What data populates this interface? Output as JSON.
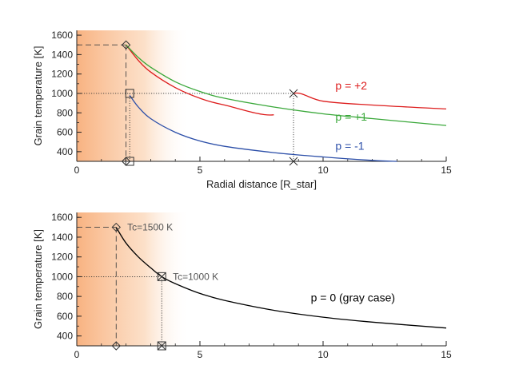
{
  "chart_data": [
    {
      "type": "line",
      "xlabel": "Radial distance [R_star]",
      "ylabel": "Grain temperature [K]",
      "xlim": [
        0,
        15
      ],
      "ylim": [
        300,
        1650
      ],
      "xticks": [
        0,
        5,
        10,
        15
      ],
      "yticks": [
        400,
        600,
        800,
        1000,
        1200,
        1400,
        1600
      ],
      "shaded_region": {
        "x_start": 0,
        "x_end": 4.6
      },
      "series": [
        {
          "name": "p = +2",
          "color": "#dd1c1c",
          "x_start": 2.0,
          "x_end": 15,
          "points": [
            [
              2.0,
              1500
            ],
            [
              2.5,
              1340
            ],
            [
              3,
              1220
            ],
            [
              4,
              1060
            ],
            [
              5,
              950
            ],
            [
              6,
              880
            ],
            [
              8,
              780
            ],
            [
              8.8,
              1000
            ],
            [
              10,
              920
            ],
            [
              12,
              880
            ],
            [
              15,
              840
            ]
          ],
          "label_x": 10.5,
          "label_y": 1040
        },
        {
          "name": "p = +1",
          "color": "#3aa83a",
          "x_start": 2.0,
          "x_end": 15,
          "points": [
            [
              2.0,
              1500
            ],
            [
              2.5,
              1370
            ],
            [
              3,
              1270
            ],
            [
              4,
              1120
            ],
            [
              5,
              1020
            ],
            [
              6,
              950
            ],
            [
              8,
              860
            ],
            [
              10,
              790
            ],
            [
              12,
              740
            ],
            [
              15,
              670
            ]
          ],
          "label_x": 10.5,
          "label_y": 720
        },
        {
          "name": "p = -1",
          "color": "#2b4ea8",
          "x_start": 2.15,
          "x_end": 13,
          "points": [
            [
              2.15,
              980
            ],
            [
              2.5,
              860
            ],
            [
              3,
              740
            ],
            [
              4,
              600
            ],
            [
              5,
              510
            ],
            [
              6,
              455
            ],
            [
              8,
              390
            ],
            [
              10,
              345
            ],
            [
              12,
              310
            ],
            [
              13,
              300
            ]
          ],
          "label_x": 10.5,
          "label_y": 420
        }
      ],
      "markers": [
        {
          "shape": "diamond",
          "x": 2.0,
          "y": 1500
        },
        {
          "shape": "square",
          "x": 2.15,
          "y": 1000
        },
        {
          "shape": "diamond",
          "x": 2.0,
          "y": 300
        },
        {
          "shape": "square",
          "x": 2.15,
          "y": 300
        },
        {
          "shape": "x",
          "x": 8.8,
          "y": 1000
        },
        {
          "shape": "x",
          "x": 8.8,
          "y": 300
        }
      ],
      "guides": [
        {
          "style": "dashed",
          "x1": 0,
          "y1": 1500,
          "x2": 2.0,
          "y2": 1500
        },
        {
          "style": "dashed",
          "x1": 2.0,
          "y1": 1500,
          "x2": 2.0,
          "y2": 300
        },
        {
          "style": "dotted",
          "x1": 0,
          "y1": 1000,
          "x2": 8.8,
          "y2": 1000
        },
        {
          "style": "dotted",
          "x1": 2.15,
          "y1": 1000,
          "x2": 2.15,
          "y2": 300
        },
        {
          "style": "dotted",
          "x1": 8.8,
          "y1": 1000,
          "x2": 8.8,
          "y2": 300
        }
      ]
    },
    {
      "type": "line",
      "xlabel": "",
      "ylabel": "Grain temperature [K]",
      "xlim": [
        0,
        15
      ],
      "ylim": [
        300,
        1650
      ],
      "xticks": [
        0,
        5,
        10,
        15
      ],
      "yticks": [
        400,
        600,
        800,
        1000,
        1200,
        1400,
        1600
      ],
      "shaded_region": {
        "x_start": 0,
        "x_end": 4.6
      },
      "series": [
        {
          "name": "p = 0 (gray case)",
          "color": "#000000",
          "points": [
            [
              1.6,
              1500
            ],
            [
              2,
              1340
            ],
            [
              2.5,
              1200
            ],
            [
              3,
              1090
            ],
            [
              3.45,
              1000
            ],
            [
              4,
              930
            ],
            [
              5,
              830
            ],
            [
              6,
              760
            ],
            [
              8,
              660
            ],
            [
              10,
              590
            ],
            [
              12,
              540
            ],
            [
              15,
              480
            ]
          ],
          "label_x": 9.5,
          "label_y": 750
        }
      ],
      "markers": [
        {
          "shape": "diamond",
          "x": 1.6,
          "y": 1500
        },
        {
          "shape": "diamond",
          "x": 1.6,
          "y": 300
        },
        {
          "shape": "xsquare",
          "x": 3.45,
          "y": 1000
        },
        {
          "shape": "xsquare",
          "x": 3.45,
          "y": 300
        }
      ],
      "annotations": [
        {
          "text": "Tc=1500 K",
          "x": 2.05,
          "y": 1500
        },
        {
          "text": "Tc=1000 K",
          "x": 3.9,
          "y": 1000
        }
      ],
      "guides": [
        {
          "style": "dashed",
          "x1": 0,
          "y1": 1500,
          "x2": 1.6,
          "y2": 1500
        },
        {
          "style": "dashed",
          "x1": 1.6,
          "y1": 1500,
          "x2": 1.6,
          "y2": 300
        },
        {
          "style": "dotted",
          "x1": 0,
          "y1": 1000,
          "x2": 3.45,
          "y2": 1000
        },
        {
          "style": "dotted",
          "x1": 3.45,
          "y1": 1000,
          "x2": 3.45,
          "y2": 300
        }
      ]
    }
  ]
}
